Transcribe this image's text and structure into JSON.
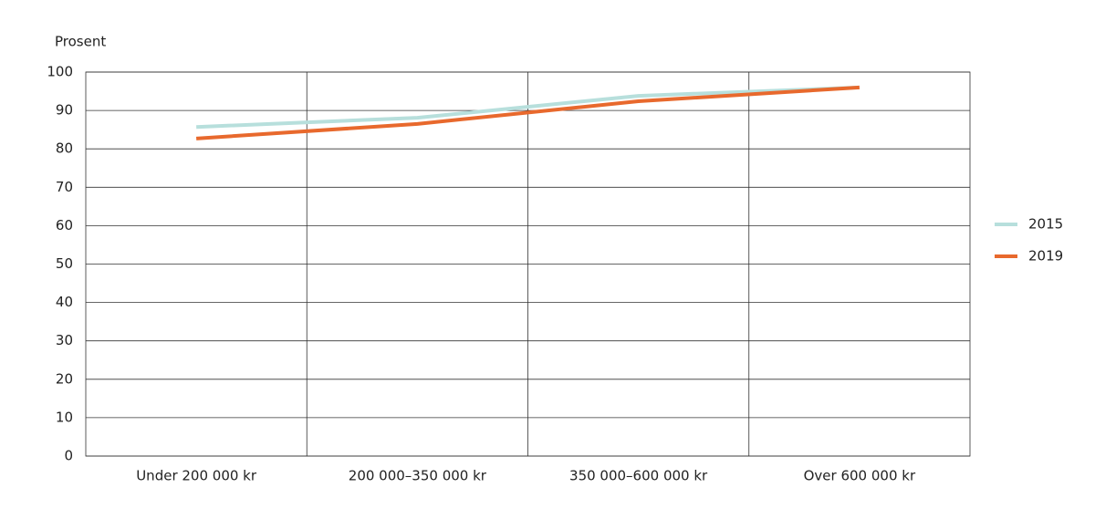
{
  "chart_data": {
    "type": "line",
    "y_label": "Prosent",
    "categories": [
      "Under 200 000 kr",
      "200 000–350 000 kr",
      "350 000–600 000 kr",
      "Over 600 000 kr"
    ],
    "series": [
      {
        "name": "2015",
        "color": "#b7dfdc",
        "values": [
          85.7,
          88.1,
          93.8,
          96
        ]
      },
      {
        "name": "2019",
        "color": "#e8692d",
        "values": [
          82.7,
          86.5,
          92.4,
          96
        ]
      }
    ],
    "ylim": [
      0,
      100
    ],
    "yticks": [
      0,
      10,
      20,
      30,
      40,
      50,
      60,
      70,
      80,
      90,
      100
    ],
    "grid": true,
    "legend": "right"
  }
}
